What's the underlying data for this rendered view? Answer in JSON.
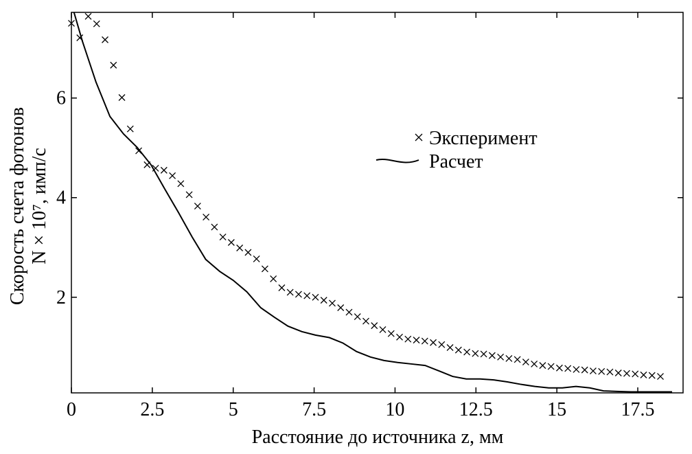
{
  "chart_data": {
    "type": "line",
    "xlabel": "Расстояние до источника z, мм",
    "ylabel": [
      "Скорость счета фотонов",
      "N × 10⁷, имп/с"
    ],
    "xlim": [
      0,
      18.9
    ],
    "ylim": [
      0.08,
      7.72
    ],
    "xticks": [
      0,
      2.5,
      5,
      7.5,
      10,
      12.5,
      15,
      17.5
    ],
    "yticks": [
      2,
      4,
      6
    ],
    "grid": false,
    "series": [
      {
        "name": "Эксперимент",
        "color": "#000000",
        "marker": "x",
        "x": [
          0,
          0.26,
          0.52,
          0.78,
          1.04,
          1.3,
          1.56,
          1.82,
          2.08,
          2.34,
          2.6,
          2.86,
          3.12,
          3.38,
          3.64,
          3.9,
          4.16,
          4.42,
          4.68,
          4.94,
          5.2,
          5.46,
          5.72,
          5.98,
          6.24,
          6.5,
          6.76,
          7.02,
          7.28,
          7.54,
          7.8,
          8.06,
          8.32,
          8.58,
          8.84,
          9.1,
          9.36,
          9.62,
          9.88,
          10.14,
          10.4,
          10.66,
          10.92,
          11.18,
          11.44,
          11.7,
          11.96,
          12.22,
          12.48,
          12.74,
          13,
          13.26,
          13.52,
          13.78,
          14.04,
          14.3,
          14.56,
          14.82,
          15.08,
          15.34,
          15.6,
          15.86,
          16.12,
          16.38,
          16.64,
          16.9,
          17.16,
          17.42,
          17.68,
          17.94,
          18.2
        ],
        "values": [
          7.5,
          7.21,
          7.64,
          7.49,
          7.17,
          6.66,
          6.01,
          5.38,
          4.94,
          4.66,
          4.59,
          4.55,
          4.44,
          4.28,
          4.06,
          3.83,
          3.61,
          3.41,
          3.21,
          3.1,
          2.99,
          2.9,
          2.77,
          2.57,
          2.37,
          2.19,
          2.1,
          2.06,
          2.03,
          2.0,
          1.94,
          1.88,
          1.79,
          1.7,
          1.61,
          1.52,
          1.43,
          1.35,
          1.27,
          1.2,
          1.16,
          1.14,
          1.12,
          1.09,
          1.05,
          0.99,
          0.94,
          0.9,
          0.87,
          0.86,
          0.83,
          0.8,
          0.77,
          0.75,
          0.7,
          0.66,
          0.63,
          0.61,
          0.58,
          0.57,
          0.55,
          0.54,
          0.52,
          0.51,
          0.5,
          0.48,
          0.47,
          0.46,
          0.44,
          0.43,
          0.41
        ]
      },
      {
        "name": "Расчет",
        "color": "#000000",
        "marker": "none",
        "x": [
          0.08,
          0.34,
          0.76,
          1.19,
          1.61,
          2.03,
          2.46,
          2.88,
          3.31,
          3.73,
          4.15,
          4.58,
          5.0,
          5.42,
          5.85,
          6.27,
          6.69,
          7.12,
          7.54,
          7.97,
          8.39,
          8.81,
          9.24,
          9.66,
          10.08,
          10.51,
          10.93,
          11.36,
          11.78,
          12.2,
          12.63,
          13.05,
          13.47,
          13.9,
          14.32,
          14.75,
          15.17,
          15.59,
          16.02,
          16.44,
          16.86,
          17.29,
          17.71,
          18.14,
          18.56
        ],
        "values": [
          7.72,
          7.14,
          6.32,
          5.63,
          5.28,
          5.01,
          4.66,
          4.18,
          3.7,
          3.21,
          2.76,
          2.52,
          2.34,
          2.11,
          1.79,
          1.6,
          1.42,
          1.31,
          1.24,
          1.19,
          1.08,
          0.91,
          0.8,
          0.73,
          0.69,
          0.66,
          0.63,
          0.52,
          0.41,
          0.36,
          0.36,
          0.34,
          0.3,
          0.25,
          0.21,
          0.18,
          0.18,
          0.21,
          0.18,
          0.12,
          0.11,
          0.1,
          0.1,
          0.1,
          0.1
        ]
      }
    ]
  }
}
